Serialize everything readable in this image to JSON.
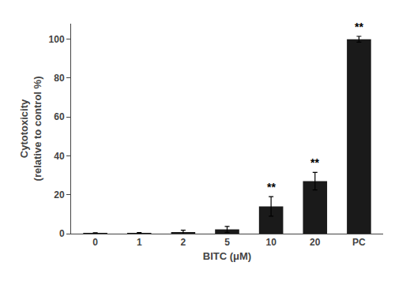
{
  "chart_data": {
    "type": "bar",
    "categories": [
      "0",
      "1",
      "2",
      "5",
      "10",
      "20",
      "PC"
    ],
    "values": [
      0.3,
      0.4,
      0.8,
      2.2,
      14.0,
      27.0,
      100.0
    ],
    "errors": [
      0.15,
      0.2,
      1.0,
      1.5,
      5.0,
      4.5,
      1.5
    ],
    "color": "#1a1a1a",
    "xlabel": "BITC (μM)",
    "ylabel": "Cytotoxicity\n(relative to control %)",
    "ylim": [
      0,
      108
    ],
    "yticks": [
      0,
      20,
      40,
      60,
      80,
      100
    ],
    "annotations": [
      {
        "category": "10",
        "text": "**"
      },
      {
        "category": "20",
        "text": "**"
      },
      {
        "category": "PC",
        "text": "**"
      }
    ],
    "grid": false
  }
}
